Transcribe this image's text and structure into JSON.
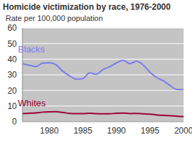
{
  "chart_data": {
    "type": "line",
    "title": "Homicide victimization by race, 1976-2000",
    "subtitle": "Rate per 100,000 population",
    "x": [
      1976,
      1977,
      1978,
      1979,
      1980,
      1981,
      1982,
      1983,
      1984,
      1985,
      1986,
      1987,
      1988,
      1989,
      1990,
      1991,
      1992,
      1993,
      1994,
      1995,
      1996,
      1997,
      1998,
      1999,
      2000
    ],
    "series": [
      {
        "name": "Blacks",
        "color": "#7b7bf0",
        "values": [
          37.1,
          36.2,
          35.3,
          37.5,
          37.7,
          36.4,
          32.3,
          29.4,
          27.2,
          27.6,
          31.2,
          30.3,
          33.4,
          35.2,
          37.6,
          39.3,
          37.2,
          38.7,
          36.2,
          31.6,
          28.2,
          26.1,
          23.1,
          20.6,
          20.5
        ]
      },
      {
        "name": "Whites",
        "color": "#990033",
        "values": [
          5.1,
          5.4,
          5.6,
          6.1,
          6.3,
          6.4,
          5.9,
          5.3,
          5.2,
          5.2,
          5.4,
          5.1,
          5.0,
          5.0,
          5.4,
          5.5,
          5.2,
          5.3,
          5.0,
          4.8,
          4.3,
          4.0,
          3.8,
          3.5,
          3.3
        ]
      }
    ],
    "xlim": [
      1976,
      2000
    ],
    "xticks": [
      1980,
      1985,
      1990,
      1995,
      2000
    ],
    "ylim": [
      0,
      60
    ],
    "yticks": [
      0,
      10,
      20,
      30,
      40,
      50,
      60
    ],
    "grid": true
  }
}
